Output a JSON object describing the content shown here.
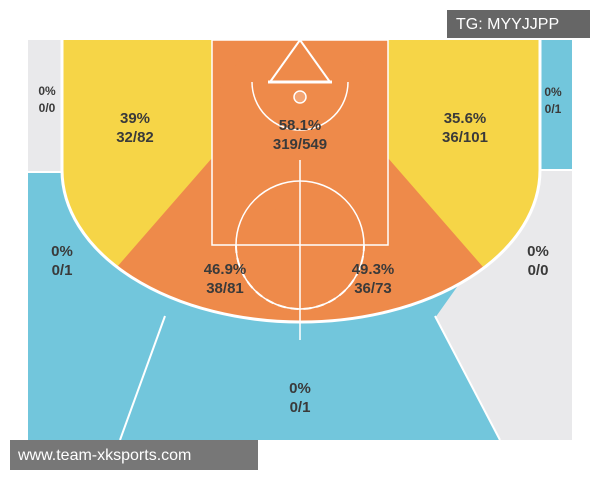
{
  "zones": [
    {
      "pct": "0%",
      "shots": "0/0"
    },
    {
      "pct": "0%",
      "shots": "0/1"
    },
    {
      "pct": "39%",
      "shots": "32/82"
    },
    {
      "pct": "58.1%",
      "shots": "319/549"
    },
    {
      "pct": "35.6%",
      "shots": "36/101"
    },
    {
      "pct": "0%",
      "shots": "0/1"
    },
    {
      "pct": "46.9%",
      "shots": "38/81"
    },
    {
      "pct": "49.3%",
      "shots": "36/73"
    },
    {
      "pct": "0%",
      "shots": "0/0"
    },
    {
      "pct": "0%",
      "shots": "0/1"
    }
  ],
  "watermark_top": "TG: MYYJJPP",
  "watermark_bottom": "www.team-xksports.com"
}
